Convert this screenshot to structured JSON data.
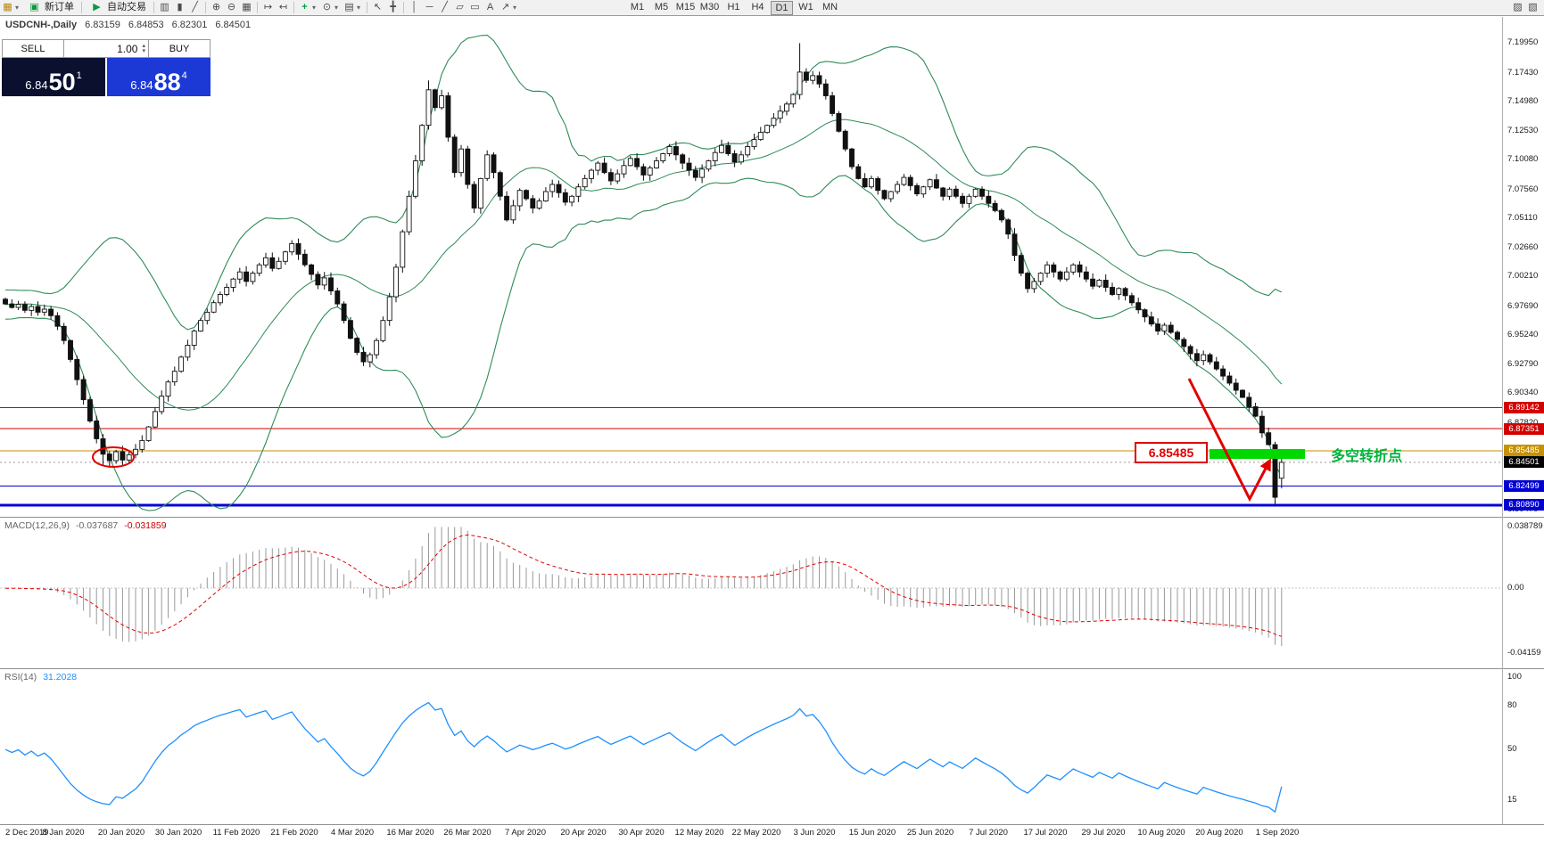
{
  "app": {
    "toolbar": {
      "new_order_label": "新订单",
      "autotrading_label": "自动交易",
      "timeframes": [
        "M1",
        "M5",
        "M15",
        "M30",
        "H1",
        "H4",
        "D1",
        "W1",
        "MN"
      ],
      "active_timeframe": "D1",
      "icons": {
        "chart_window": "▦",
        "caret": "▾",
        "new_order": "▣",
        "autotrading_play": "▶",
        "bar_chart": "▥",
        "candle_chart": "▮",
        "line_chart": "╱",
        "zoom_in": "⊕",
        "zoom_out": "⊖",
        "tile_windows": "▦",
        "auto_scroll": "↦",
        "chart_shift": "↤",
        "indicators_add": "+",
        "periods": "⊙",
        "templates": "▤",
        "cursor": "↖",
        "crosshair": "╋",
        "vertical_line": "│",
        "horizontal_line": "─",
        "trendline": "╱",
        "channel": "▱",
        "shapes": "▭",
        "text_tool": "A",
        "arrow_tool": "↗",
        "right_icon_1": "▨",
        "right_icon_2": "▧",
        "spinner_up": "▴",
        "spinner_down": "▾"
      }
    },
    "chart_header": {
      "symbol_period": "USDCNH-,Daily",
      "open": "6.83159",
      "high": "6.84853",
      "low": "6.82301",
      "close": "6.84501"
    },
    "trade_panel": {
      "sell_label": "SELL",
      "buy_label": "BUY",
      "lot_value": "1.00",
      "sell_price_small": "6.84",
      "sell_price_big": "50",
      "sell_price_sup": "1",
      "buy_price_small": "6.84",
      "buy_price_big": "88",
      "buy_price_sup": "4"
    }
  },
  "annotations": {
    "price_box": {
      "text": "6.85485",
      "color": "#e00000"
    },
    "turning_point": {
      "text": "多空转折点",
      "color": "#00b33c"
    },
    "green_zone": {
      "color": "#00d800"
    },
    "circle": {
      "color": "#e00000"
    },
    "arrow": {
      "color": "#e00000"
    }
  },
  "chart_data": {
    "type": "candlestick",
    "symbol": "USDCNH",
    "period": "Daily",
    "dates": [
      "2 Dec 2019",
      "8 Jan 2020",
      "20 Jan 2020",
      "30 Jan 2020",
      "11 Feb 2020",
      "21 Feb 2020",
      "4 Mar 2020",
      "16 Mar 2020",
      "26 Mar 2020",
      "7 Apr 2020",
      "20 Apr 2020",
      "30 Apr 2020",
      "12 May 2020",
      "22 May 2020",
      "3 Jun 2020",
      "15 Jun 2020",
      "25 Jun 2020",
      "7 Jul 2020",
      "17 Jul 2020",
      "29 Jul 2020",
      "10 Aug 2020",
      "20 Aug 2020",
      "1 Sep 2020"
    ],
    "price_axis_labels": [
      "7.19950",
      "7.17430",
      "7.14980",
      "7.12530",
      "7.10080",
      "7.07560",
      "7.05110",
      "7.02660",
      "7.00210",
      "6.97690",
      "6.95240",
      "6.92790",
      "6.90340",
      "6.87820",
      "6.80470"
    ],
    "levels": [
      {
        "value": 6.89142,
        "color": "#d40000",
        "width": 1,
        "label": "6.89142"
      },
      {
        "value": 6.87351,
        "color": "#d40000",
        "width": 1,
        "label": "6.87351"
      },
      {
        "value": 6.85485,
        "color": "#c79200",
        "width": 1,
        "label": "6.85485"
      },
      {
        "value": 6.82499,
        "color": "#0000d4",
        "width": 1,
        "label": "6.82499"
      },
      {
        "value": 6.8089,
        "color": "#0000d4",
        "width": 3,
        "label": "6.80890"
      }
    ],
    "current_price": {
      "value": 6.84501,
      "label": "6.84501"
    },
    "closes": [
      6.979,
      6.976,
      6.9785,
      6.9735,
      6.9768,
      6.972,
      6.9745,
      6.969,
      6.96,
      6.948,
      6.932,
      6.915,
      6.898,
      6.88,
      6.865,
      6.852,
      6.8465,
      6.854,
      6.847,
      6.8515,
      6.856,
      6.8635,
      6.875,
      6.888,
      6.901,
      6.913,
      6.922,
      6.934,
      6.944,
      6.956,
      6.965,
      6.972,
      6.98,
      6.987,
      6.993,
      7.0,
      7.006,
      6.998,
      7.005,
      7.012,
      7.018,
      7.009,
      7.015,
      7.023,
      7.03,
      7.021,
      7.012,
      7.004,
      6.995,
      7.001,
      6.99,
      6.979,
      6.965,
      6.95,
      6.938,
      6.93,
      6.936,
      6.948,
      6.965,
      6.985,
      7.01,
      7.04,
      7.07,
      7.1,
      7.13,
      7.16,
      7.145,
      7.155,
      7.12,
      7.09,
      7.11,
      7.08,
      7.06,
      7.085,
      7.105,
      7.09,
      7.07,
      7.05,
      7.062,
      7.075,
      7.068,
      7.06,
      7.066,
      7.074,
      7.08,
      7.073,
      7.065,
      7.07,
      7.078,
      7.085,
      7.092,
      7.098,
      7.09,
      7.083,
      7.089,
      7.096,
      7.102,
      7.095,
      7.088,
      7.094,
      7.1,
      7.106,
      7.112,
      7.105,
      7.098,
      7.092,
      7.086,
      7.093,
      7.1,
      7.107,
      7.113,
      7.106,
      7.099,
      7.105,
      7.112,
      7.118,
      7.124,
      7.13,
      7.136,
      7.142,
      7.148,
      7.156,
      7.175,
      7.168,
      7.172,
      7.165,
      7.155,
      7.14,
      7.125,
      7.11,
      7.095,
      7.085,
      7.078,
      7.085,
      7.075,
      7.068,
      7.074,
      7.08,
      7.086,
      7.079,
      7.072,
      7.078,
      7.084,
      7.077,
      7.07,
      7.076,
      7.07,
      7.064,
      7.07,
      7.076,
      7.07,
      7.064,
      7.058,
      7.05,
      7.038,
      7.02,
      7.005,
      6.992,
      6.998,
      7.005,
      7.012,
      7.006,
      7.0,
      7.006,
      7.012,
      7.006,
      7.0,
      6.994,
      6.999,
      6.993,
      6.987,
      6.992,
      6.986,
      6.98,
      6.974,
      6.968,
      6.962,
      6.956,
      6.961,
      6.955,
      6.949,
      6.943,
      6.937,
      6.931,
      6.936,
      6.93,
      6.924,
      6.918,
      6.912,
      6.906,
      6.9,
      6.892,
      6.884,
      6.87,
      6.86,
      6.8155,
      6.84501
    ],
    "overrides": {
      "15": {
        "h": 6.869,
        "l": 6.842
      },
      "16": {
        "l": 6.8405
      },
      "65": {
        "h": 7.168
      },
      "122": {
        "h": 7.1995
      },
      "195": {
        "o": 6.86,
        "h": 6.8625,
        "l": 6.8089,
        "c": 6.8155
      },
      "196": {
        "o": 6.83159,
        "h": 6.84853,
        "l": 6.82301,
        "c": 6.84501
      }
    },
    "bollinger": {
      "period": 20,
      "deviation": 2,
      "color": "#2E8B57"
    },
    "macd": {
      "label": "MACD(12,26,9)",
      "main_value": "-0.037687",
      "signal_value": "-0.031859",
      "axis": [
        {
          "text": "0.038789",
          "v": 0.038789
        },
        {
          "text": "0.00",
          "v": 0
        },
        {
          "text": "-0.04159",
          "v": -0.04159
        }
      ],
      "hist_color": "#999999",
      "signal_color": "#e00000"
    },
    "rsi": {
      "label": "RSI(14)",
      "value": "31.2028",
      "axis": [
        {
          "text": "100",
          "v": 100
        },
        {
          "text": "80",
          "v": 80
        },
        {
          "text": "50",
          "v": 50
        },
        {
          "text": "15",
          "v": 15
        }
      ],
      "color": "#1E90FF"
    }
  }
}
